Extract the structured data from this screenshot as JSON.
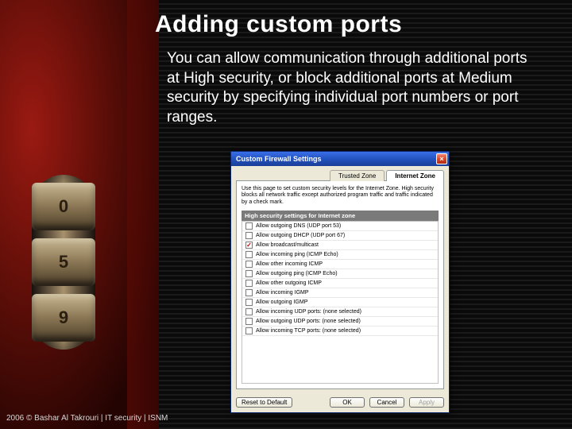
{
  "slide": {
    "title": "Adding custom ports",
    "body": "You can allow communication through additional ports at High security, or block additional ports at Medium security by specifying individual port numbers or port ranges.",
    "title_color": "#ffffff",
    "title_fontsize": 30,
    "body_color": "#ffffff",
    "body_fontsize": 19
  },
  "footer": {
    "text": "2006 © Bashar Al Takrouri | IT security | ISNM"
  },
  "decor": {
    "red_gradient": [
      "#9a1a12",
      "#5e0e08",
      "#230402"
    ],
    "dial_digits": [
      "0",
      "5",
      "9"
    ]
  },
  "dialog": {
    "title": "Custom Firewall Settings",
    "titlebar_gradient": [
      "#3a6ee8",
      "#2353c0",
      "#1a3e97"
    ],
    "close_label": "×",
    "tabs": [
      {
        "label": "Trusted Zone",
        "active": false
      },
      {
        "label": "Internet Zone",
        "active": true
      }
    ],
    "intro": "Use this page to set custom security levels for the Internet Zone. High security blocks all network traffic except authorized program traffic and traffic indicated by a check mark.",
    "zone_header": "High security settings for Internet zone",
    "options": [
      {
        "label": "Allow outgoing DNS (UDP port 53)",
        "checked": false
      },
      {
        "label": "Allow outgoing DHCP (UDP port 67)",
        "checked": false
      },
      {
        "label": "Allow broadcast/multicast",
        "checked": true
      },
      {
        "label": "Allow incoming ping (ICMP Echo)",
        "checked": false
      },
      {
        "label": "Allow other incoming ICMP",
        "checked": false
      },
      {
        "label": "Allow outgoing ping (ICMP Echo)",
        "checked": false
      },
      {
        "label": "Allow other outgoing ICMP",
        "checked": false
      },
      {
        "label": "Allow incoming IGMP",
        "checked": false
      },
      {
        "label": "Allow outgoing IGMP",
        "checked": false
      },
      {
        "label": "Allow incoming UDP ports: (none selected)",
        "checked": false
      },
      {
        "label": "Allow outgoing UDP ports: (none selected)",
        "checked": false
      },
      {
        "label": "Allow incoming TCP ports: (none selected)",
        "checked": false
      }
    ],
    "buttons": {
      "reset": "Reset to Default",
      "ok": "OK",
      "cancel": "Cancel",
      "apply": "Apply"
    },
    "background": "#ece9d8",
    "border": "#0a246a",
    "panel_bg": "#ffffff",
    "zone_header_bg": "#7a7a7a",
    "zone_header_color": "#ffffff",
    "check_color": "#c00000"
  }
}
